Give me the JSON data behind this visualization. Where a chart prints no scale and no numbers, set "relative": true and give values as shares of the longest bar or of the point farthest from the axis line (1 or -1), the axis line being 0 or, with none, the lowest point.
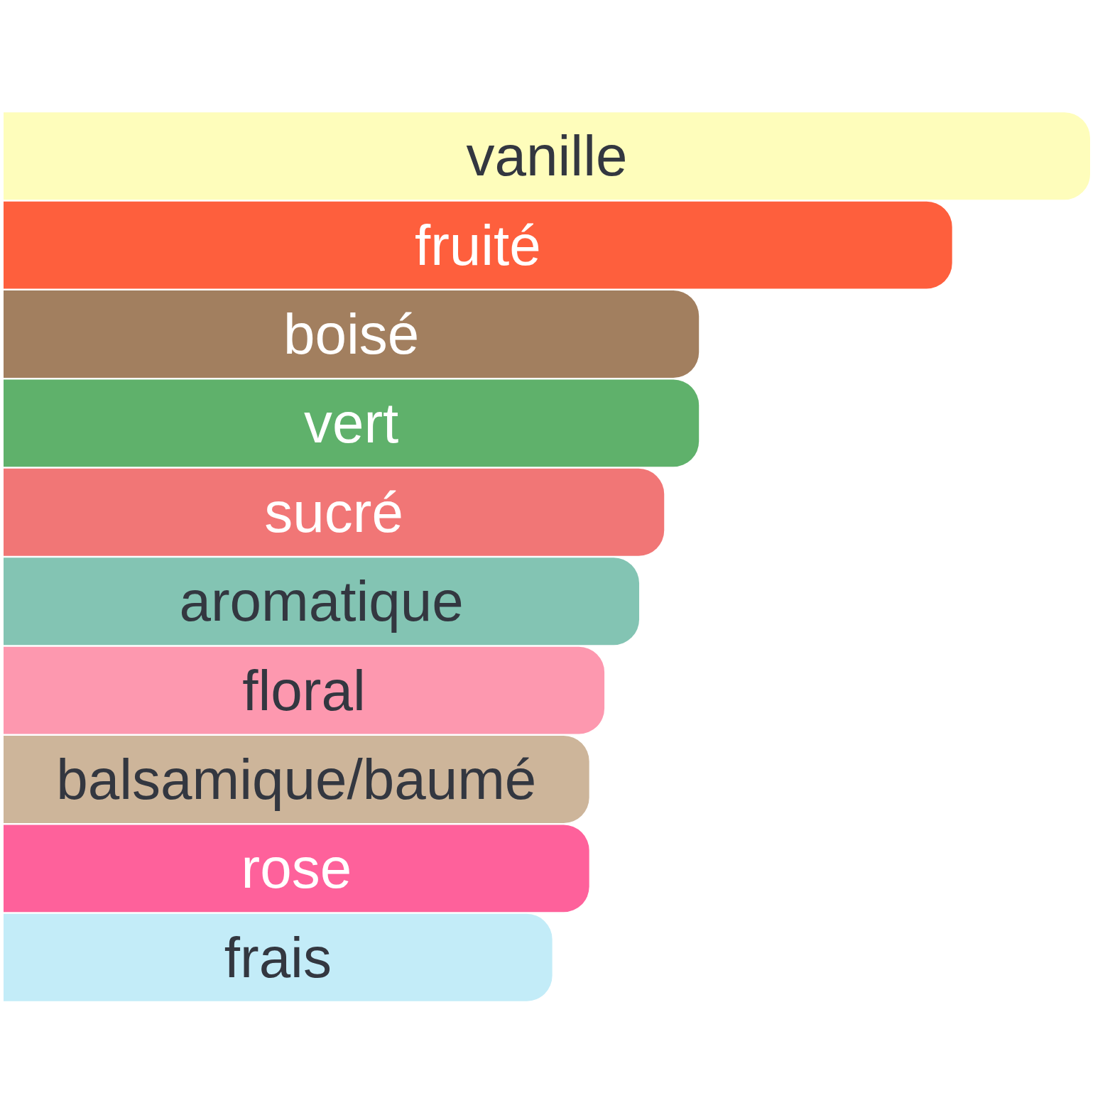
{
  "chart_data": {
    "type": "bar",
    "orientation": "horizontal",
    "relative": true,
    "categories": [
      "vanille",
      "fruité",
      "boisé",
      "vert",
      "sucré",
      "aromatique",
      "floral",
      "balsamique/baumé",
      "rose",
      "frais"
    ],
    "values": [
      1,
      0.873,
      0.64,
      0.64,
      0.608,
      0.585,
      0.553,
      0.539,
      0.539,
      0.505
    ],
    "colors": [
      "#fefdbb",
      "#fe5f3d",
      "#a27f5f",
      "#5fb16b",
      "#f17676",
      "#83c4b3",
      "#fd98af",
      "#cdb59a",
      "#fe619b",
      "#c3ecf8"
    ],
    "grid": false,
    "legend": false
  }
}
